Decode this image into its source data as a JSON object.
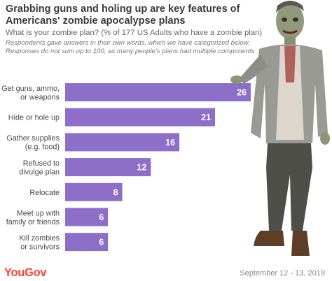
{
  "header": {
    "title": "Grabbing guns and holing up are key features of Americans' zombie apocalypse plans",
    "subtitle": "What is your zombie plan? (% of 177 US Adults who have a zombie plan)",
    "note_line1": "Respondents gave answers in their own words, which we have categorized below.",
    "note_line2": "Responses do not sum up to 100, as many people's plans had multiple components"
  },
  "footer": {
    "logo": "YouGov",
    "date": "September 12 - 13, 2019"
  },
  "colors": {
    "bar": "#8d6fc9",
    "bar_label": "#ffffff",
    "category_label": "#4a4a4a",
    "logo": "#ff412c"
  },
  "chart_data": {
    "type": "bar",
    "orientation": "horizontal",
    "categories": [
      [
        "Get guns, ammo,",
        "or weapons"
      ],
      [
        "Hide or hole up"
      ],
      [
        "Gather supplies",
        "(e.g. food)"
      ],
      [
        "Refused to",
        "divulge plan"
      ],
      [
        "Relocate"
      ],
      [
        "Meet up with",
        "family or friends"
      ],
      [
        "Kill zombies",
        "or survivors"
      ]
    ],
    "values": [
      26,
      21,
      16,
      12,
      8,
      6,
      6
    ],
    "xlim": [
      0,
      26
    ],
    "grid": false,
    "legend": "none"
  }
}
